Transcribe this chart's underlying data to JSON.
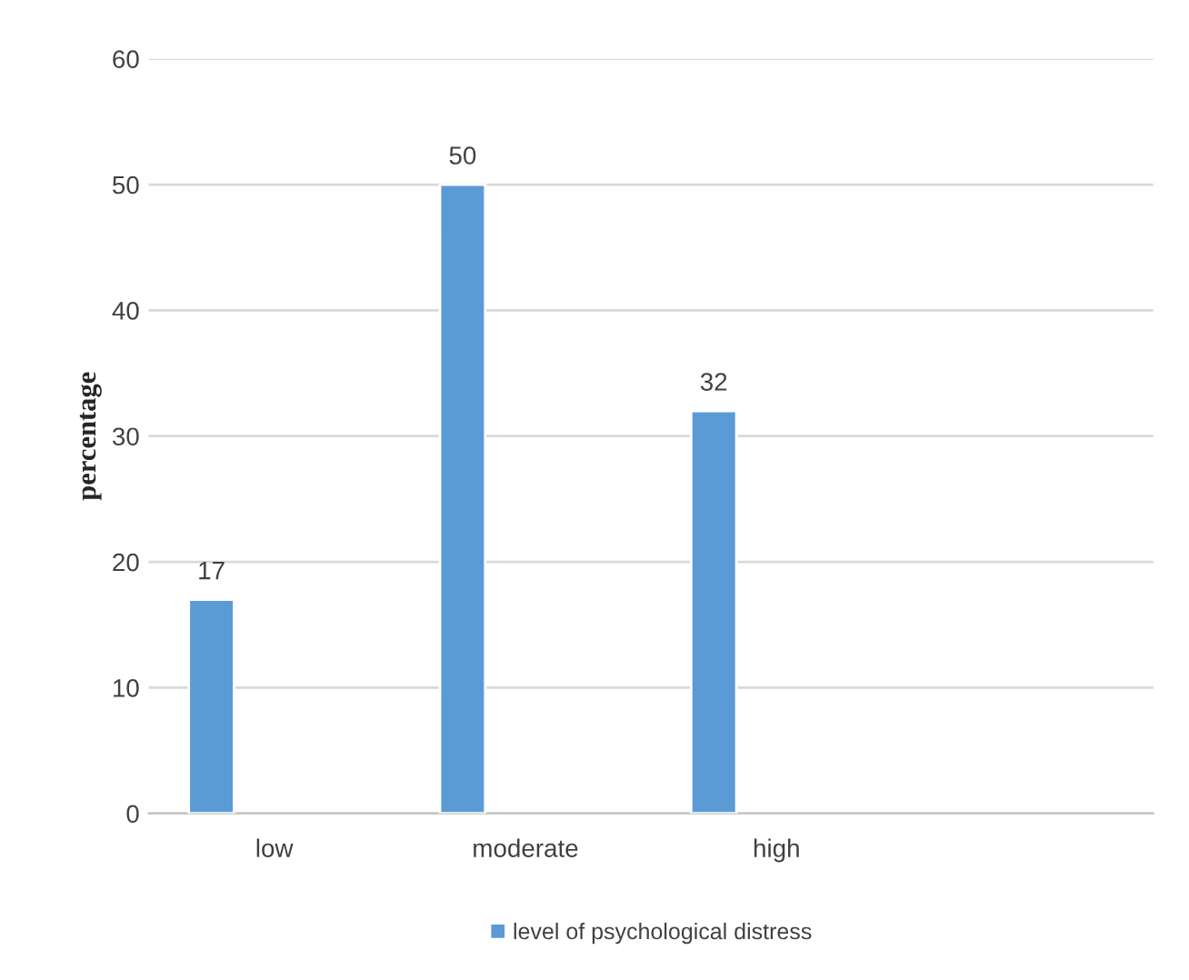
{
  "chart_data": {
    "type": "bar",
    "ylabel": "percentage",
    "categories": [
      "low",
      "moderate",
      "high",
      null
    ],
    "series": [
      {
        "name": "level of psychological distress",
        "color": "#5b9bd5",
        "values": [
          17,
          50,
          32,
          null
        ]
      }
    ],
    "ylim": [
      0,
      60
    ],
    "yticks": [
      0,
      10,
      20,
      30,
      40,
      50,
      60
    ],
    "grid": "y",
    "legend": "bottom",
    "data_labels": true
  }
}
